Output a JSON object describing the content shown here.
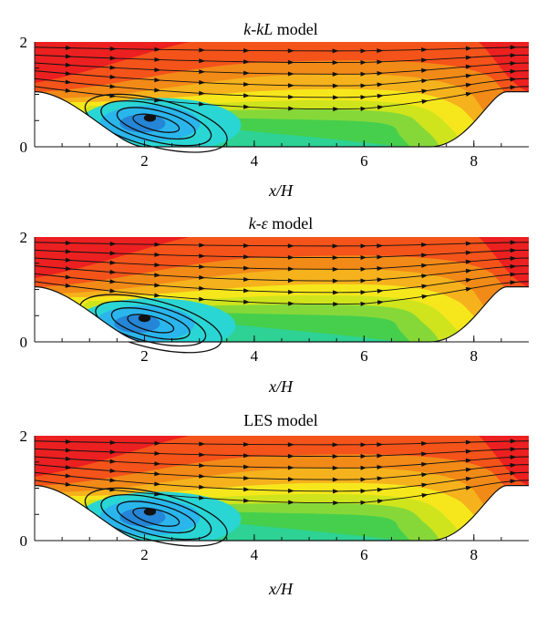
{
  "panels": [
    {
      "title_parts": [
        {
          "text": "k-kL",
          "italic": true
        },
        {
          "text": " model",
          "italic": false
        }
      ]
    },
    {
      "title_parts": [
        {
          "text": "k-ε",
          "italic": true
        },
        {
          "text": " model",
          "italic": false
        }
      ]
    },
    {
      "title_parts": [
        {
          "text": "LES model",
          "italic": false
        }
      ]
    }
  ],
  "colors": {
    "red": "#ec2020",
    "orange_red": "#f4531a",
    "orange": "#f28a18",
    "light_orange": "#f5b21c",
    "yellow": "#f6e71c",
    "yellow_green": "#cfe41c",
    "light_green": "#86d839",
    "green": "#46cf4d",
    "green_cyan": "#2dd294",
    "cyan": "#2ad6d3",
    "light_blue": "#2ab6ec",
    "blue": "#2585d6",
    "streamline": "#111111"
  },
  "chart_data": [
    {
      "type": "contour",
      "title": "k-kL model",
      "xlabel": "x/H",
      "ylabel": "",
      "xlim": [
        0,
        9
      ],
      "ylim": [
        0,
        2
      ],
      "xticks": [
        2,
        4,
        6,
        8
      ],
      "yticks": [
        0,
        2
      ],
      "x_tick_labels": [
        "2",
        "4",
        "6",
        "8"
      ],
      "y_tick_labels": [
        "0",
        "2"
      ],
      "hill_crest_height": 1.05,
      "recirculation_vortex_center": [
        2.1,
        0.55
      ],
      "streamlines_y_at_inlet": [
        1.15,
        1.3,
        1.45,
        1.6,
        1.75,
        1.9
      ]
    },
    {
      "type": "contour",
      "title": "k-ε model",
      "xlabel": "x/H",
      "ylabel": "",
      "xlim": [
        0,
        9
      ],
      "ylim": [
        0,
        2
      ],
      "xticks": [
        2,
        4,
        6,
        8
      ],
      "yticks": [
        0,
        2
      ],
      "x_tick_labels": [
        "2",
        "4",
        "6",
        "8"
      ],
      "y_tick_labels": [
        "0",
        "2"
      ],
      "hill_crest_height": 1.05,
      "recirculation_vortex_center": [
        2.0,
        0.45
      ],
      "streamlines_y_at_inlet": [
        1.15,
        1.3,
        1.45,
        1.6,
        1.75,
        1.9
      ]
    },
    {
      "type": "contour",
      "title": "LES model",
      "xlabel": "x/H",
      "ylabel": "",
      "xlim": [
        0,
        9
      ],
      "ylim": [
        0,
        2
      ],
      "xticks": [
        2,
        4,
        6,
        8
      ],
      "yticks": [
        0,
        2
      ],
      "x_tick_labels": [
        "2",
        "4",
        "6",
        "8"
      ],
      "y_tick_labels": [
        "0",
        "2"
      ],
      "hill_crest_height": 1.05,
      "recirculation_vortex_center": [
        2.1,
        0.55
      ],
      "streamlines_y_at_inlet": [
        1.15,
        1.3,
        1.45,
        1.6,
        1.75,
        1.9
      ]
    }
  ]
}
